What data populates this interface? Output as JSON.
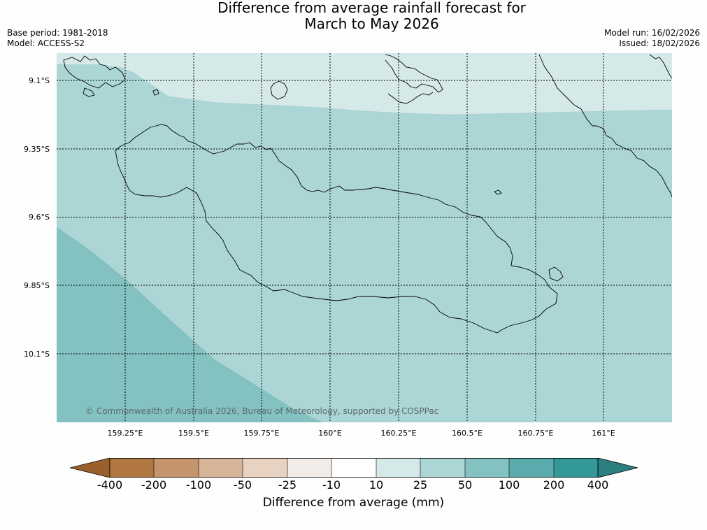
{
  "title": {
    "line1": "Difference from average rainfall forecast for",
    "line2": "March to May 2026"
  },
  "meta": {
    "base_period": "Base period: 1981-2018",
    "model": "Model: ACCESS-S2",
    "model_run": "Model run: 16/02/2026",
    "issued": "Issued: 18/02/2026"
  },
  "map": {
    "lat_labels": [
      "9.1°S",
      "9.35°S",
      "9.6°S",
      "9.85°S",
      "10.1°S"
    ],
    "lon_labels": [
      "159.25°E",
      "159.5°E",
      "159.75°E",
      "160°E",
      "160.25°E",
      "160.5°E",
      "160.75°E",
      "161°E"
    ],
    "credit": "© Commonwealth of Australia 2026, Bureau of Meteorology, supported by COSPPac",
    "region_colors": {
      "band_10_25": "#d5e9e9",
      "band_25_50": "#acd5d5",
      "band_50_100": "#84c1c1"
    },
    "coastline_color": "#000000"
  },
  "colorbar": {
    "title": "Difference from average (mm)",
    "tick_labels": [
      "-400",
      "-200",
      "-100",
      "-50",
      "-25",
      "-10",
      "10",
      "25",
      "50",
      "100",
      "200",
      "400"
    ],
    "colors": [
      "#9b5f2c",
      "#b07840",
      "#c4956c",
      "#d6b497",
      "#e8d2c1",
      "#f2ece9",
      "#ffffff",
      "#d5e9e9",
      "#acd5d5",
      "#84c1c1",
      "#5aabab",
      "#349898",
      "#2b7f7f"
    ]
  }
}
